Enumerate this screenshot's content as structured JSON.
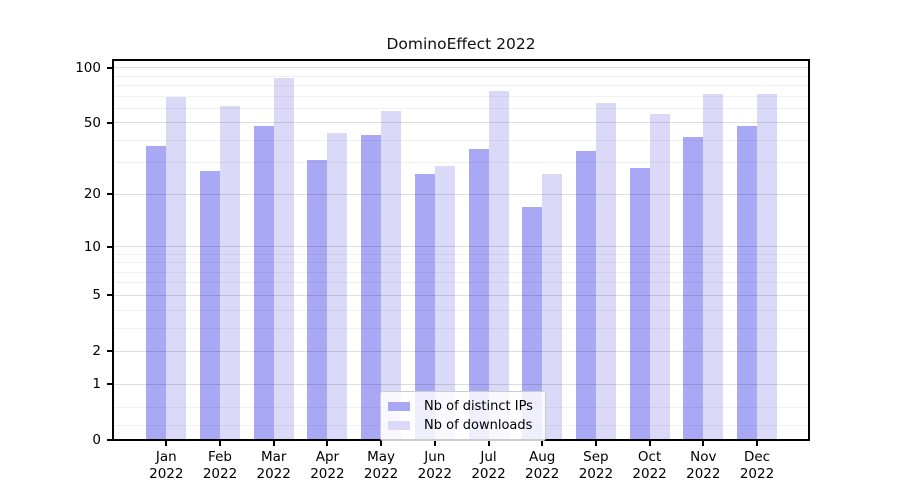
{
  "title": "DominoEffect 2022",
  "chart_data": {
    "type": "bar",
    "title": "DominoEffect 2022",
    "categories": [
      "Jan",
      "Feb",
      "Mar",
      "Apr",
      "May",
      "Jun",
      "Jul",
      "Aug",
      "Sep",
      "Oct",
      "Nov",
      "Dec"
    ],
    "x_labels": [
      {
        "month": "Jan",
        "year": "2022"
      },
      {
        "month": "Feb",
        "year": "2022"
      },
      {
        "month": "Mar",
        "year": "2022"
      },
      {
        "month": "Apr",
        "year": "2022"
      },
      {
        "month": "May",
        "year": "2022"
      },
      {
        "month": "Jun",
        "year": "2022"
      },
      {
        "month": "Jul",
        "year": "2022"
      },
      {
        "month": "Aug",
        "year": "2022"
      },
      {
        "month": "Sep",
        "year": "2022"
      },
      {
        "month": "Oct",
        "year": "2022"
      },
      {
        "month": "Nov",
        "year": "2022"
      },
      {
        "month": "Dec",
        "year": "2022"
      }
    ],
    "series": [
      {
        "name": "Nb of distinct IPs",
        "color": "#a8a8f5",
        "values": [
          37,
          27,
          48,
          31,
          43,
          26,
          36,
          17,
          35,
          28,
          42,
          48
        ]
      },
      {
        "name": "Nb of downloads",
        "color": "#dadaf8",
        "values": [
          69,
          62,
          88,
          44,
          58,
          29,
          75,
          26,
          64,
          56,
          72,
          72
        ]
      }
    ],
    "yscale": "symlog",
    "ylim": [
      0,
      110
    ],
    "yticks": [
      {
        "value": 100,
        "label": "100"
      },
      {
        "value": 50,
        "label": "50"
      },
      {
        "value": 20,
        "label": "20"
      },
      {
        "value": 10,
        "label": "10"
      },
      {
        "value": 5,
        "label": "5"
      },
      {
        "value": 2,
        "label": "2"
      },
      {
        "value": 1,
        "label": "1"
      },
      {
        "value": 0,
        "label": "0"
      }
    ],
    "minor_yticks": [
      0.2,
      0.5,
      3,
      4,
      6,
      7,
      8,
      9,
      30,
      40,
      60,
      70,
      80,
      90
    ],
    "grid": true,
    "legend_position": "bottom-center",
    "grid_major_color": "rgba(0,0,0,0.13)",
    "grid_minor_color": "rgba(0,0,0,0.055)"
  }
}
